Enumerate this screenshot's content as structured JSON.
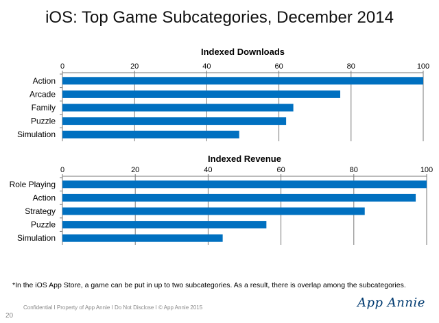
{
  "slide": {
    "title": "iOS: Top Game Subcategories, December 2014",
    "footnote": "*In the iOS App Store, a game can be put in up to two subcategories.  As a result, there is overlap among the subcategories.",
    "footer": "Confidential  I  Property of App Annie  I  Do Not Disclose  I  © App Annie 2015",
    "logo": "App Annie",
    "page_number": "20"
  },
  "chart_data": [
    {
      "type": "bar",
      "orientation": "horizontal",
      "title": "Indexed Downloads",
      "categories": [
        "Action",
        "Arcade",
        "Family",
        "Puzzle",
        "Simulation"
      ],
      "values": [
        100,
        77,
        64,
        62,
        49
      ],
      "xlim": [
        0,
        100
      ],
      "ticks": [
        "0",
        "20",
        "40",
        "60",
        "80",
        "100"
      ],
      "axis_position": "top",
      "grid": true,
      "bar_color": "#0070c0"
    },
    {
      "type": "bar",
      "orientation": "horizontal",
      "title": "Indexed Revenue",
      "categories": [
        "Role Playing",
        "Action",
        "Strategy",
        "Puzzle",
        "Simulation"
      ],
      "values": [
        100,
        97,
        83,
        56,
        44
      ],
      "xlim": [
        0,
        100
      ],
      "ticks": [
        "0",
        "20",
        "40",
        "60",
        "80",
        "100"
      ],
      "axis_position": "top",
      "grid": true,
      "bar_color": "#0070c0"
    }
  ]
}
